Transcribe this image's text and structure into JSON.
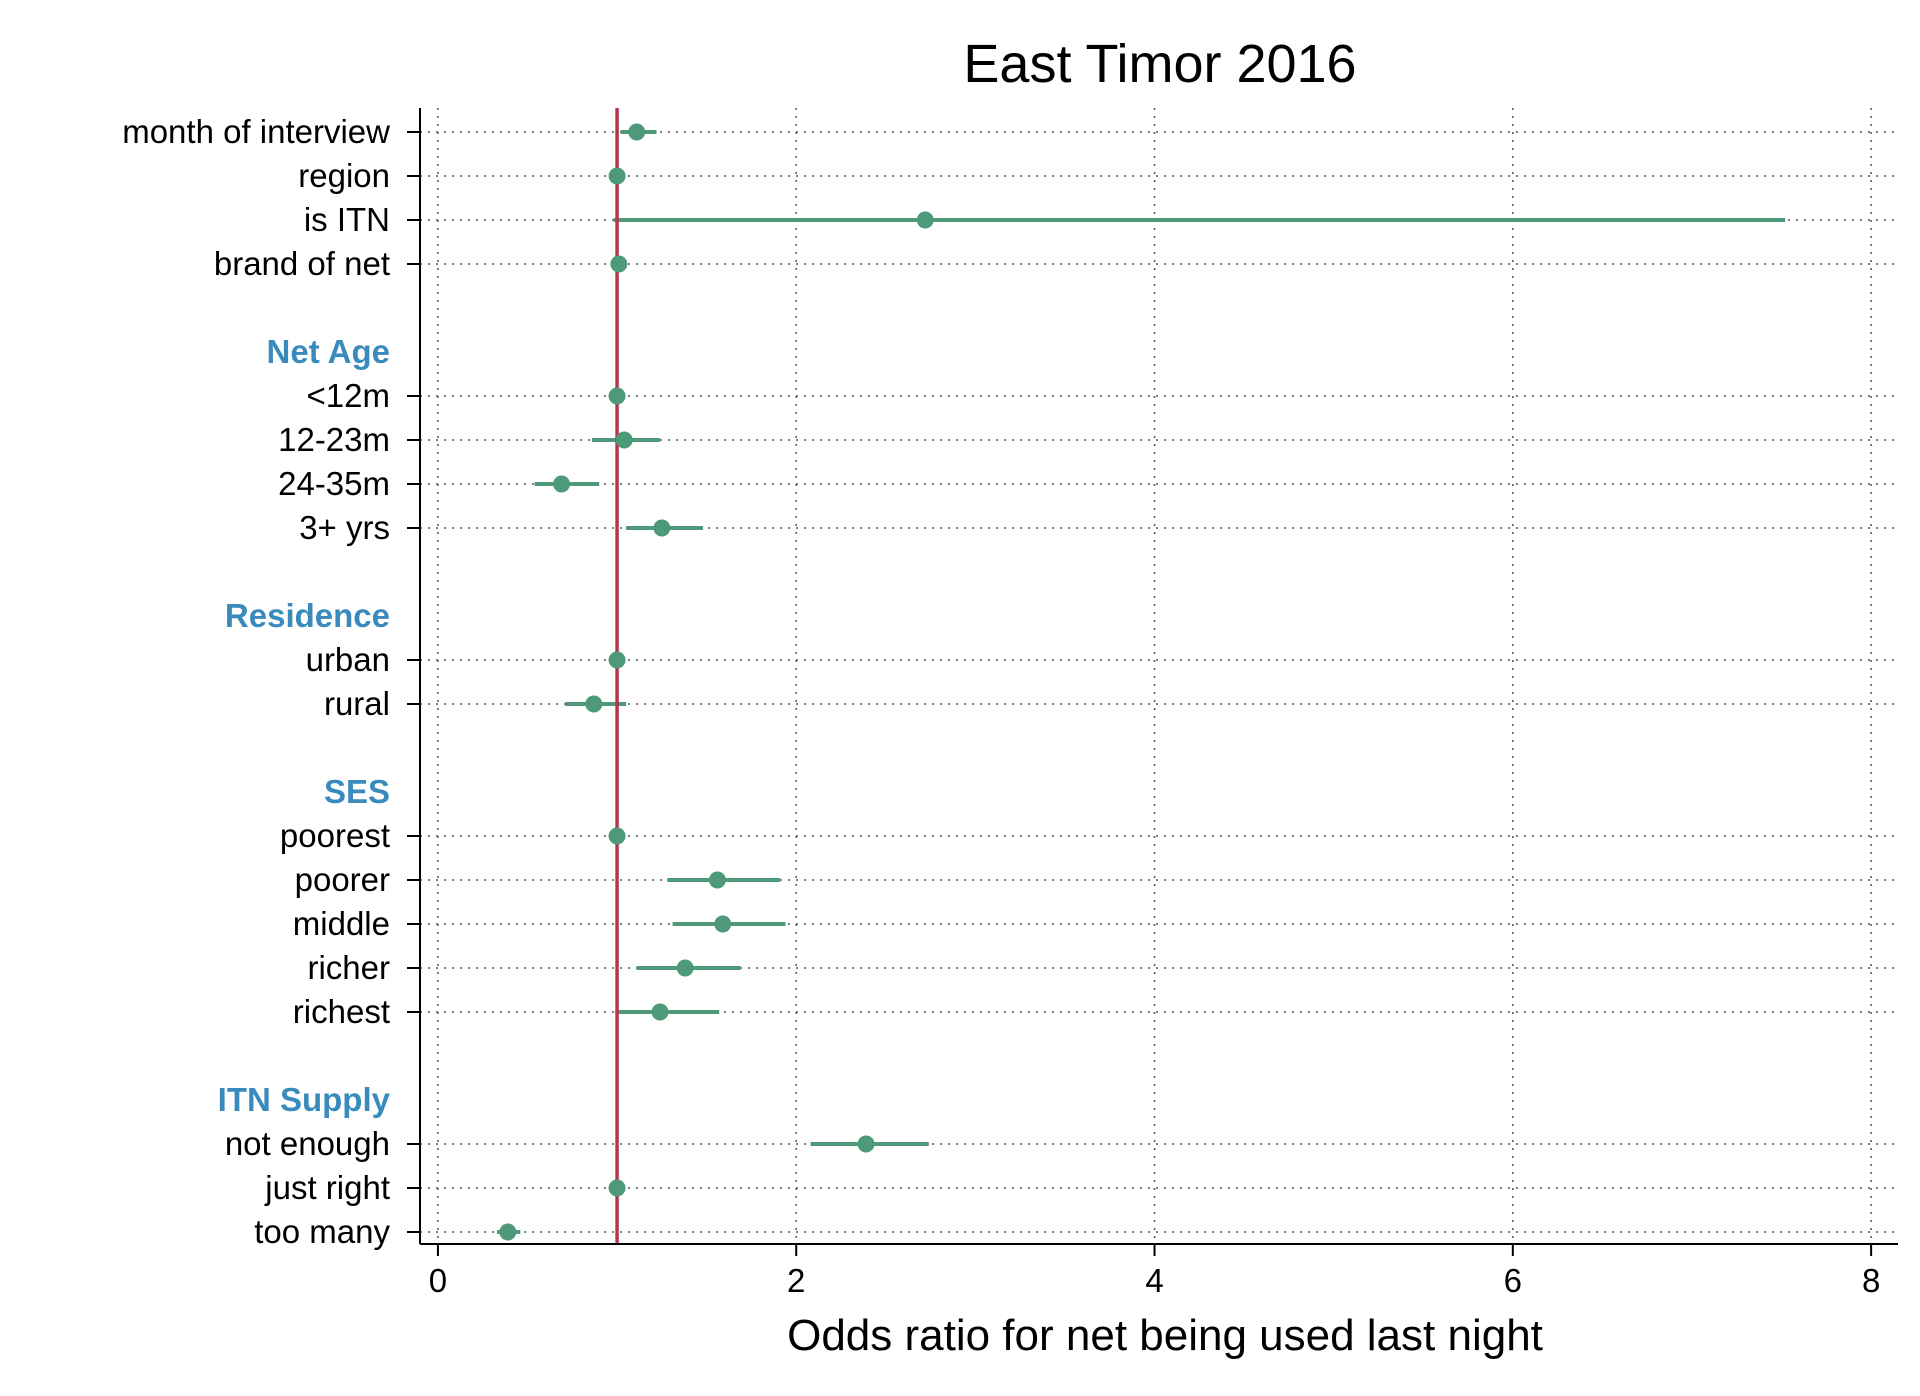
{
  "chart_data": {
    "type": "forest",
    "title": "East Timor 2016",
    "xlabel": "Odds ratio for net being used last night",
    "ylabel": "",
    "xlim": [
      -0.1,
      8.15
    ],
    "xticks": [
      0,
      2,
      4,
      6,
      8
    ],
    "reference_line": 1,
    "grid": "dotted vertical and horizontal",
    "colors": {
      "point": "#4e9a78",
      "reference": "#b5364a",
      "group_label": "#3a8bbd"
    },
    "rows": [
      {
        "label": "month of interview",
        "kind": "item",
        "or": 1.11,
        "lo": 1.02,
        "hi": 1.22
      },
      {
        "label": "region",
        "kind": "item",
        "or": 1.0,
        "lo": 1.0,
        "hi": 1.0
      },
      {
        "label": "is ITN",
        "kind": "item",
        "or": 2.72,
        "lo": 0.98,
        "hi": 7.52
      },
      {
        "label": "brand of net",
        "kind": "item",
        "or": 1.01,
        "lo": 1.0,
        "hi": 1.02
      },
      {
        "label": "",
        "kind": "gap"
      },
      {
        "label": "Net Age",
        "kind": "group"
      },
      {
        "label": "<12m",
        "kind": "item",
        "or": 1.0,
        "lo": 1.0,
        "hi": 1.0
      },
      {
        "label": "12-23m",
        "kind": "item",
        "or": 1.04,
        "lo": 0.86,
        "hi": 1.24
      },
      {
        "label": "24-35m",
        "kind": "item",
        "or": 0.69,
        "lo": 0.54,
        "hi": 0.9
      },
      {
        "label": "3+ yrs",
        "kind": "item",
        "or": 1.25,
        "lo": 1.05,
        "hi": 1.48
      },
      {
        "label": "",
        "kind": "gap"
      },
      {
        "label": "Residence",
        "kind": "group"
      },
      {
        "label": "urban",
        "kind": "item",
        "or": 1.0,
        "lo": 1.0,
        "hi": 1.0
      },
      {
        "label": "rural",
        "kind": "item",
        "or": 0.87,
        "lo": 0.71,
        "hi": 1.05
      },
      {
        "label": "",
        "kind": "gap"
      },
      {
        "label": "SES",
        "kind": "group"
      },
      {
        "label": "poorest",
        "kind": "item",
        "or": 1.0,
        "lo": 1.0,
        "hi": 1.0
      },
      {
        "label": "poorer",
        "kind": "item",
        "or": 1.56,
        "lo": 1.28,
        "hi": 1.91
      },
      {
        "label": "middle",
        "kind": "item",
        "or": 1.59,
        "lo": 1.31,
        "hi": 1.94
      },
      {
        "label": "richer",
        "kind": "item",
        "or": 1.38,
        "lo": 1.11,
        "hi": 1.69
      },
      {
        "label": "richest",
        "kind": "item",
        "or": 1.24,
        "lo": 0.99,
        "hi": 1.57
      },
      {
        "label": "",
        "kind": "gap"
      },
      {
        "label": "ITN Supply",
        "kind": "group"
      },
      {
        "label": "not enough",
        "kind": "item",
        "or": 2.39,
        "lo": 2.08,
        "hi": 2.74
      },
      {
        "label": "just right",
        "kind": "item",
        "or": 1.0,
        "lo": 1.0,
        "hi": 1.0
      },
      {
        "label": "too many",
        "kind": "item",
        "or": 0.39,
        "lo": 0.33,
        "hi": 0.46
      }
    ]
  }
}
